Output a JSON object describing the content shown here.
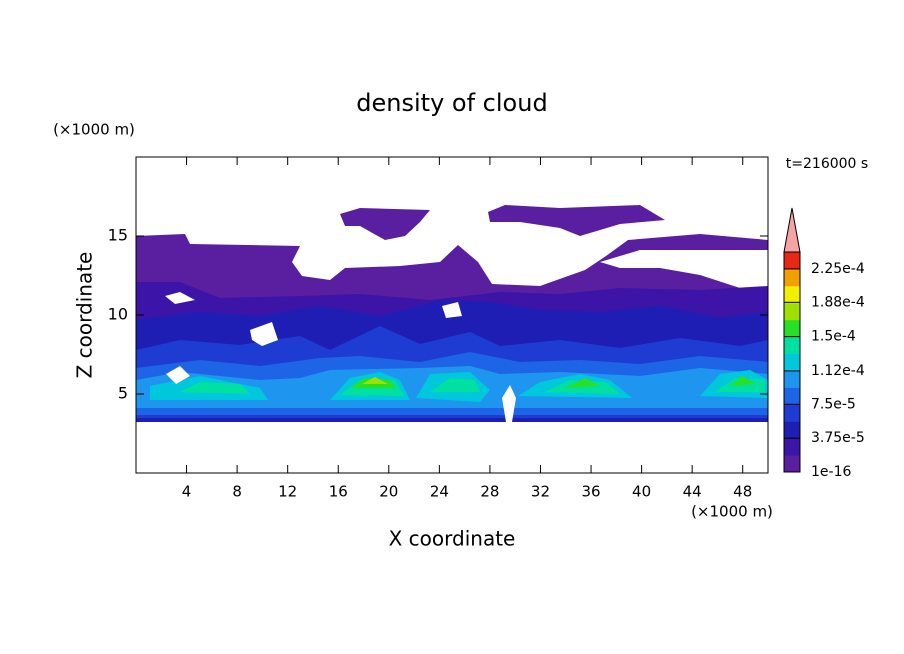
{
  "chart_data": {
    "type": "contour",
    "title": "density of cloud",
    "x_label": "X coordinate",
    "y_label": "Z coordinate",
    "x_unit": "(×1000 m)",
    "y_unit": "(×1000 m)",
    "time_label": "t=216000 s",
    "xlim": [
      0,
      50
    ],
    "ylim": [
      0,
      20
    ],
    "xticks": [
      4,
      8,
      12,
      16,
      20,
      24,
      28,
      32,
      36,
      40,
      44,
      48
    ],
    "yticks": [
      5,
      10,
      15
    ],
    "colorbar": {
      "clim": [
        1e-16,
        0.00024375
      ],
      "colors": [
        "#5a1ea0",
        "#3c14a8",
        "#1e1eb4",
        "#1e3cd2",
        "#1e64e6",
        "#1e96f0",
        "#00c8dc",
        "#00e0a0",
        "#28e028",
        "#a0e000",
        "#f0f000",
        "#f0a000",
        "#e62814"
      ],
      "extend_color": "#f4a4a4",
      "ticks": [
        {
          "value": 1e-16,
          "label": "1e-16"
        },
        {
          "value": 3.75e-05,
          "label": "3.75e-5"
        },
        {
          "value": 7.5e-05,
          "label": "7.5e-5"
        },
        {
          "value": 0.000112,
          "label": "1.12e-4"
        },
        {
          "value": 0.00015,
          "label": "1.5e-4"
        },
        {
          "value": 0.000188,
          "label": "1.88e-4"
        },
        {
          "value": 0.000225,
          "label": "2.25e-4"
        }
      ]
    }
  }
}
